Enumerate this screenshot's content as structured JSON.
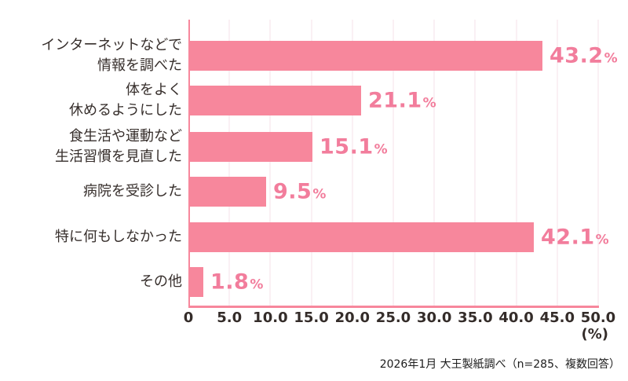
{
  "chart_data": {
    "type": "bar",
    "orientation": "horizontal",
    "categories": [
      [
        "インターネットなどで",
        "情報を調べた"
      ],
      [
        "体をよく",
        "休めるようにした"
      ],
      [
        "食生活や運動など",
        "生活習慣を見直した"
      ],
      [
        "病院を受診した"
      ],
      [
        "特に何もしなかった"
      ],
      [
        "その他"
      ]
    ],
    "values": [
      43.2,
      21.1,
      15.1,
      9.5,
      42.1,
      1.8
    ],
    "value_labels": [
      "43.2",
      "21.1",
      "15.1",
      "9.5",
      "42.1",
      "1.8"
    ],
    "value_suffix": "%",
    "xlim": [
      0,
      50
    ],
    "x_ticks": [
      "0",
      "5.0",
      "10.0",
      "15.0",
      "20.0",
      "25.0",
      "30.0",
      "35.0",
      "40.0",
      "45.0",
      "50.0"
    ],
    "x_unit_label": "(%)",
    "grid": true,
    "legend": "none",
    "title": "",
    "colors": {
      "bar": "#F7879C",
      "value_label": "#F27D9C",
      "gridline": "#F5E2E8",
      "axis": "#F7879C",
      "label_text": "#362E2B"
    }
  },
  "footer": {
    "source_note": "2026年1月 大王製紙調べ（n=285、複数回答）"
  }
}
